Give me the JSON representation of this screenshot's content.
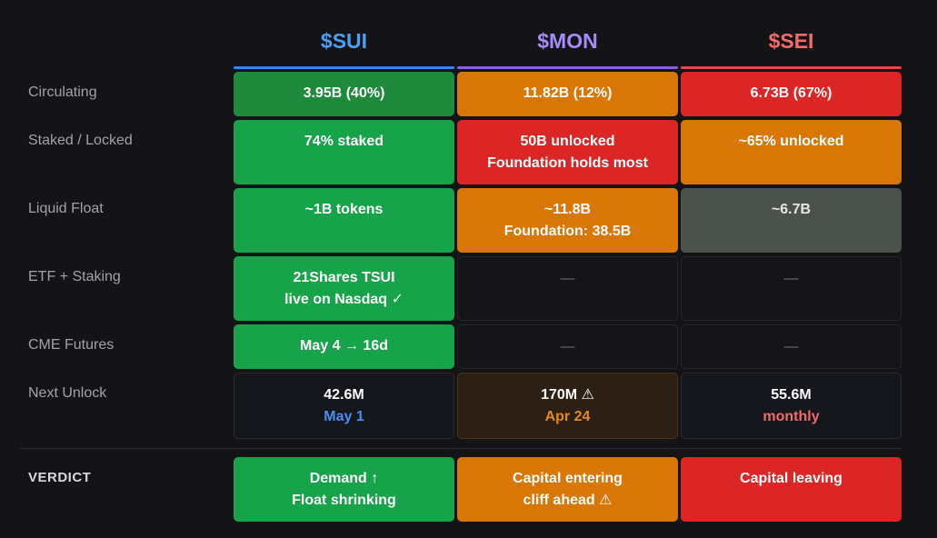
{
  "columns": [
    {
      "ticker": "$SUI",
      "color": "#4d9ef5",
      "underline": "#3b82f6"
    },
    {
      "ticker": "$MON",
      "color": "#a78bfa",
      "underline": "#8b5cf6"
    },
    {
      "ticker": "$SEI",
      "color": "#f26b6b",
      "underline": "#ef4444"
    }
  ],
  "rows": {
    "circulating": {
      "label": "Circulating",
      "cells": [
        "3.95B (40%)",
        "11.82B (12%)",
        "6.73B (67%)"
      ]
    },
    "staked": {
      "label": "Staked / Locked",
      "sui": "74% staked",
      "mon": [
        "50B unlocked",
        "Foundation holds most"
      ],
      "sei": "~65% unlocked"
    },
    "float": {
      "label": "Liquid Float",
      "sui": "~1B tokens",
      "mon": [
        "~11.8B",
        "Foundation: 38.5B"
      ],
      "sei": "~6.7B"
    },
    "etf": {
      "label": "ETF + Staking",
      "sui": [
        "21Shares TSUI",
        "live on Nasdaq ✓"
      ],
      "mon": "—",
      "sei": "—"
    },
    "cme": {
      "label": "CME Futures",
      "sui": "May 4 → 16d",
      "mon": "—",
      "sei": "—"
    },
    "unlock": {
      "label": "Next Unlock",
      "sui": {
        "amount": "42.6M",
        "when": "May 1"
      },
      "mon": {
        "amount": "170M ⚠",
        "when": "Apr 24"
      },
      "sei": {
        "amount": "55.6M",
        "when": "monthly"
      }
    },
    "verdict": {
      "label": "VERDICT",
      "sui": [
        "Demand ↑",
        "Float shrinking"
      ],
      "mon": [
        "Capital entering",
        "cliff ahead ⚠"
      ],
      "sei": "Capital leaving"
    }
  }
}
